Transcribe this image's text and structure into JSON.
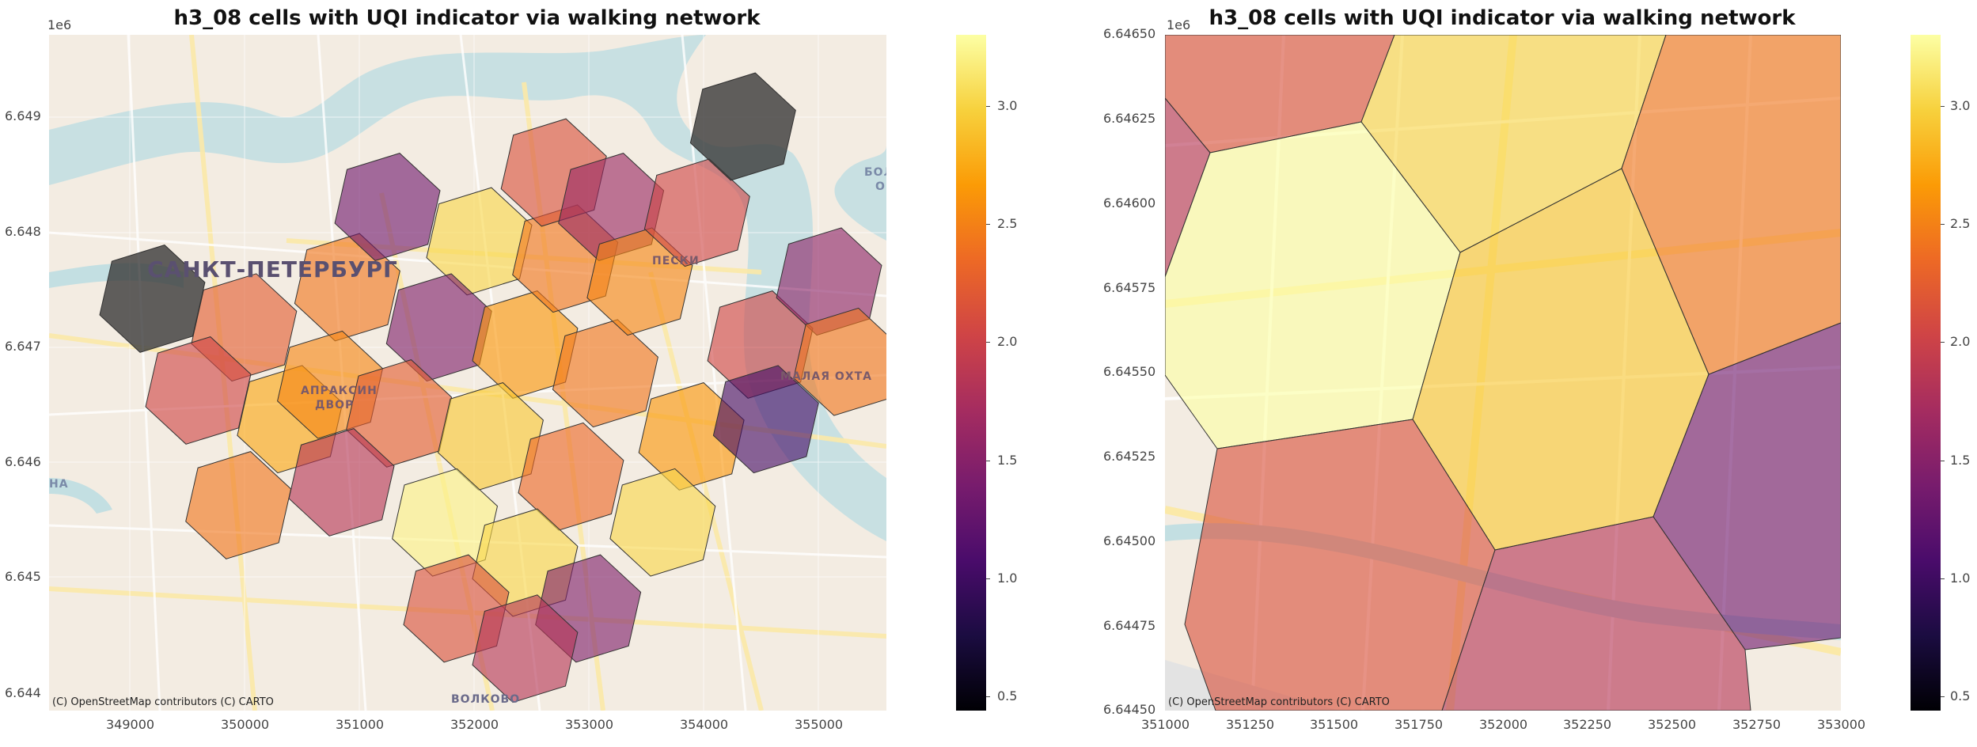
{
  "left_map": {
    "title": "h3_08 cells with UQI indicator via walking network",
    "y_offset_label": "1e6",
    "y_ticks": [
      "6.649",
      "6.648",
      "6.647",
      "6.646",
      "6.645",
      "6.644"
    ],
    "x_ticks": [
      "349000",
      "350000",
      "351000",
      "352000",
      "353000",
      "354000",
      "355000"
    ],
    "attribution": "(C) OpenStreetMap contributors (C) CARTO",
    "place_labels": {
      "city": "САНКТ-ПЕТЕРБУРГ",
      "apraksin": "АПРАКСИН",
      "dvor": "ДВОР",
      "peski": "ПЕСКИ",
      "malaya_okhta": "МАЛАЯ ОХТА",
      "volkovo": "ВОЛКОВО",
      "bol": "БОЛ",
      "o": "О",
      "na": "НА"
    }
  },
  "right_map": {
    "title": "h3_08 cells with UQI indicator via walking network",
    "y_offset_label": "1e6",
    "y_ticks": [
      "6.64650",
      "6.64625",
      "6.64600",
      "6.64575",
      "6.64550",
      "6.64525",
      "6.64500",
      "6.64475",
      "6.64450"
    ],
    "x_ticks": [
      "351000",
      "351250",
      "351500",
      "351750",
      "352000",
      "352250",
      "352500",
      "352750",
      "353000"
    ],
    "attribution": "(C) OpenStreetMap contributors (C) CARTO"
  },
  "colorbar": {
    "ticks": [
      "3.0",
      "2.5",
      "2.0",
      "1.5",
      "1.0",
      "0.5"
    ],
    "vmin": 0.4,
    "vmax": 3.3,
    "colormap": "inferno"
  },
  "chart_data": {
    "type": "heatmap",
    "left_hex_uqi": [
      {
        "cx": 349200,
        "cy": 6647650,
        "uqi": null
      },
      {
        "cx": 350000,
        "cy": 6647400,
        "uqi": 2.2
      },
      {
        "cx": 349600,
        "cy": 6646850,
        "uqi": 2.0
      },
      {
        "cx": 350400,
        "cy": 6646600,
        "uqi": 2.7
      },
      {
        "cx": 350900,
        "cy": 6647750,
        "uqi": 2.4
      },
      {
        "cx": 351250,
        "cy": 6648450,
        "uqi": 1.3
      },
      {
        "cx": 350750,
        "cy": 6646900,
        "uqi": 2.5
      },
      {
        "cx": 352050,
        "cy": 6648150,
        "uqi": 3.0
      },
      {
        "cx": 351700,
        "cy": 6647400,
        "uqi": 1.4
      },
      {
        "cx": 351350,
        "cy": 6646650,
        "uqi": 2.2
      },
      {
        "cx": 350850,
        "cy": 6646050,
        "uqi": 1.8
      },
      {
        "cx": 349950,
        "cy": 6645850,
        "uqi": 2.4
      },
      {
        "cx": 352450,
        "cy": 6647250,
        "uqi": 2.6
      },
      {
        "cx": 352150,
        "cy": 6646450,
        "uqi": 2.9
      },
      {
        "cx": 351750,
        "cy": 6645700,
        "uqi": 3.2
      },
      {
        "cx": 352800,
        "cy": 6648000,
        "uqi": 2.4
      },
      {
        "cx": 352700,
        "cy": 6648750,
        "uqi": 2.1
      },
      {
        "cx": 353200,
        "cy": 6648450,
        "uqi": 1.6
      },
      {
        "cx": 353150,
        "cy": 6647000,
        "uqi": 2.4
      },
      {
        "cx": 353450,
        "cy": 6647800,
        "uqi": 2.5
      },
      {
        "cx": 352850,
        "cy": 6646100,
        "uqi": 2.3
      },
      {
        "cx": 352450,
        "cy": 6645350,
        "uqi": 3.0
      },
      {
        "cx": 353900,
        "cy": 6646450,
        "uqi": 2.6
      },
      {
        "cx": 353650,
        "cy": 6645700,
        "uqi": 3.0
      },
      {
        "cx": 353950,
        "cy": 6648400,
        "uqi": 2.0
      },
      {
        "cx": 354350,
        "cy": 6649150,
        "uqi": null
      },
      {
        "cx": 354500,
        "cy": 6647250,
        "uqi": 2.0
      },
      {
        "cx": 354550,
        "cy": 6646600,
        "uqi": 1.0
      },
      {
        "cx": 355100,
        "cy": 6647800,
        "uqi": 1.5
      },
      {
        "cx": 355250,
        "cy": 6647100,
        "uqi": 2.4
      },
      {
        "cx": 353000,
        "cy": 6644950,
        "uqi": 1.4
      },
      {
        "cx": 351850,
        "cy": 6644950,
        "uqi": 2.1
      },
      {
        "cx": 352450,
        "cy": 6644600,
        "uqi": 1.8
      }
    ],
    "right_hex_uqi": [
      {
        "name": "top-left",
        "uqi": 2.1
      },
      {
        "name": "top-center",
        "uqi": 3.0
      },
      {
        "name": "top-right",
        "uqi": 2.4
      },
      {
        "name": "left-edge",
        "uqi": 1.8
      },
      {
        "name": "center-left",
        "uqi": 3.3
      },
      {
        "name": "center",
        "uqi": 2.9
      },
      {
        "name": "right",
        "uqi": 1.3
      },
      {
        "name": "bottom-left",
        "uqi": 2.1
      },
      {
        "name": "bottom-center",
        "uqi": 1.8
      }
    ]
  }
}
